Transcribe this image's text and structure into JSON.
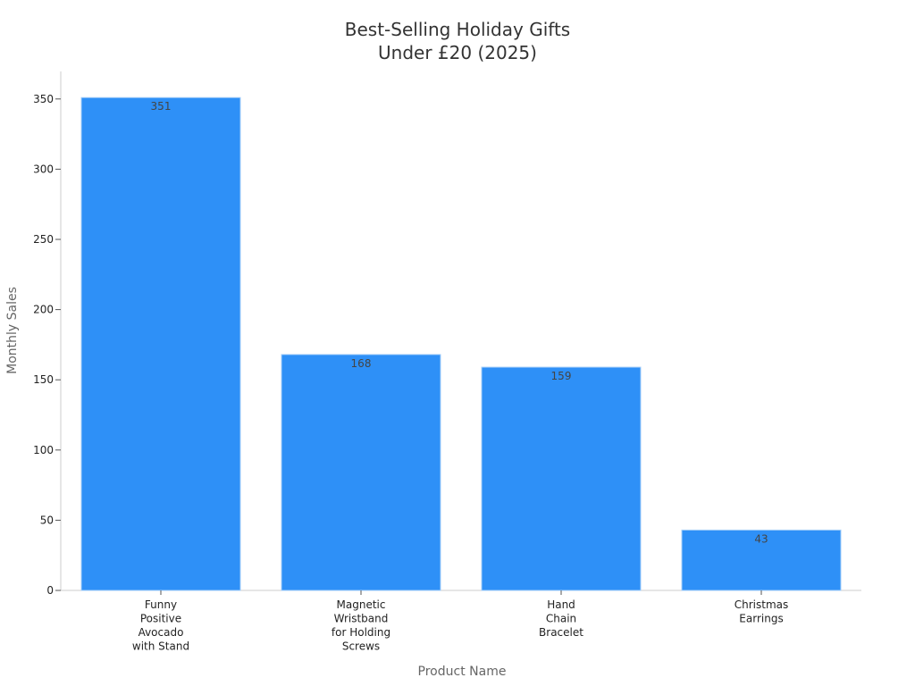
{
  "chart_data": {
    "type": "bar",
    "title_lines": [
      "Best-Selling Holiday Gifts",
      "Under £20 (2025)"
    ],
    "xlabel": "Product Name",
    "ylabel": "Monthly Sales",
    "categories": [
      [
        "Funny",
        "Positive",
        "Avocado",
        "with Stand"
      ],
      [
        "Magnetic",
        "Wristband",
        "for Holding",
        "Screws"
      ],
      [
        "Hand",
        "Chain",
        "Bracelet"
      ],
      [
        "Christmas",
        "Earrings"
      ]
    ],
    "values": [
      351,
      168,
      159,
      43
    ],
    "data_labels": [
      "351",
      "168",
      "159",
      "43"
    ],
    "ylim": [
      0,
      370
    ],
    "yticks": [
      0,
      50,
      100,
      150,
      200,
      250,
      300,
      350
    ],
    "grid": false,
    "legend": "none",
    "bar_color": "#2e90f7",
    "bar_edge_color": "#a7cff8"
  }
}
